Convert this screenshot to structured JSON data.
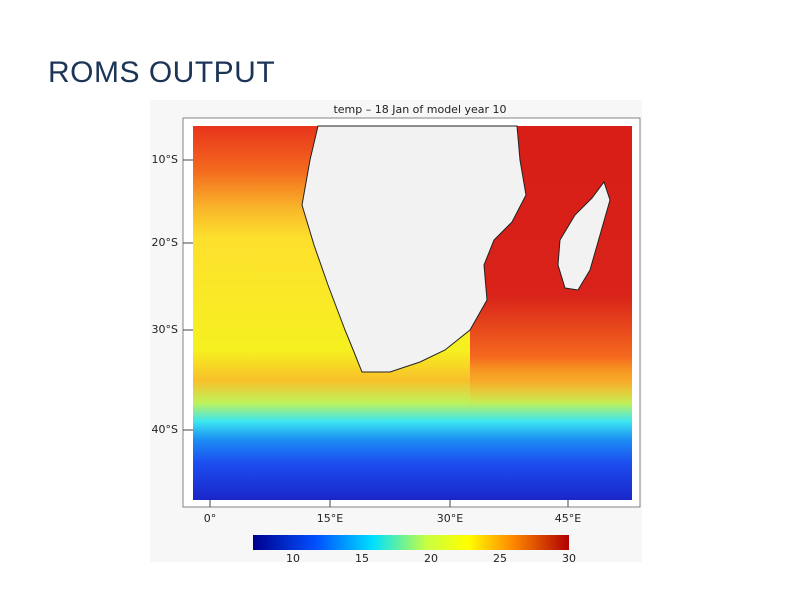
{
  "header": {
    "title": "ROMS OUTPUT"
  },
  "map": {
    "title": "temp – 18 Jan of model year 10",
    "lat_labels": [
      "10°S",
      "20°S",
      "30°S",
      "40°S"
    ],
    "lon_labels": [
      "0°",
      "15°E",
      "30°E",
      "45°E"
    ],
    "colorbar_labels": [
      "10",
      "15",
      "20",
      "25",
      "30"
    ]
  }
}
